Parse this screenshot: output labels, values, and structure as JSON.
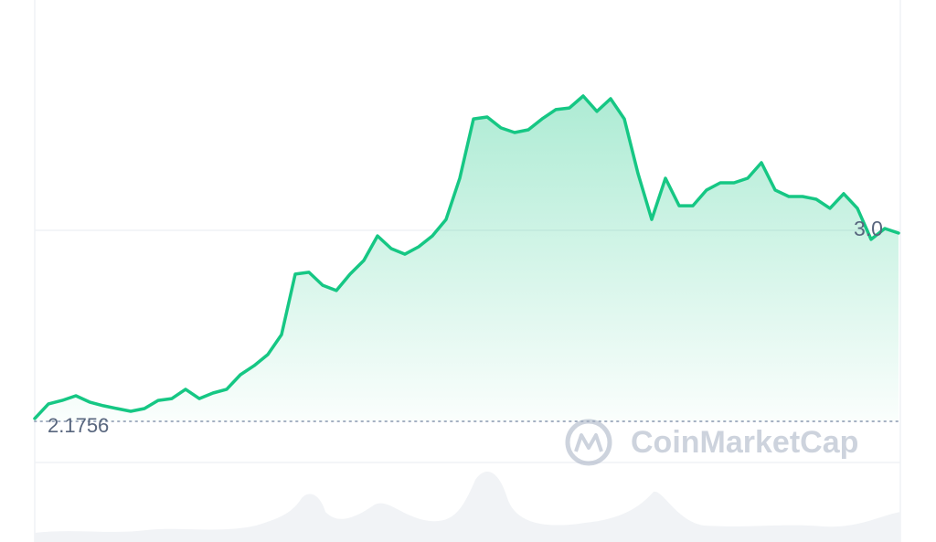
{
  "chart_data": {
    "type": "line",
    "values": [
      2.188,
      2.251,
      2.266,
      2.286,
      2.259,
      2.243,
      2.231,
      2.219,
      2.231,
      2.266,
      2.274,
      2.314,
      2.274,
      2.298,
      2.314,
      2.377,
      2.416,
      2.464,
      2.55,
      2.811,
      2.819,
      2.763,
      2.74,
      2.811,
      2.87,
      2.976,
      2.921,
      2.897,
      2.929,
      2.976,
      3.047,
      3.225,
      3.481,
      3.489,
      3.442,
      3.422,
      3.434,
      3.481,
      3.521,
      3.528,
      3.58,
      3.513,
      3.568,
      3.481,
      3.245,
      3.047,
      3.225,
      3.106,
      3.106,
      3.174,
      3.205,
      3.205,
      3.225,
      3.292,
      3.174,
      3.146,
      3.146,
      3.134,
      3.095,
      3.158,
      3.095,
      2.961,
      3.008,
      2.988
    ],
    "color": "#16c784",
    "ylim": [
      1.655,
      3.994
    ],
    "yticks": [
      {
        "value": 3.0,
        "label": "3.0"
      }
    ],
    "grid": true,
    "reference": {
      "value": 2.1756
    },
    "watermark": "CoinMarketCap"
  }
}
